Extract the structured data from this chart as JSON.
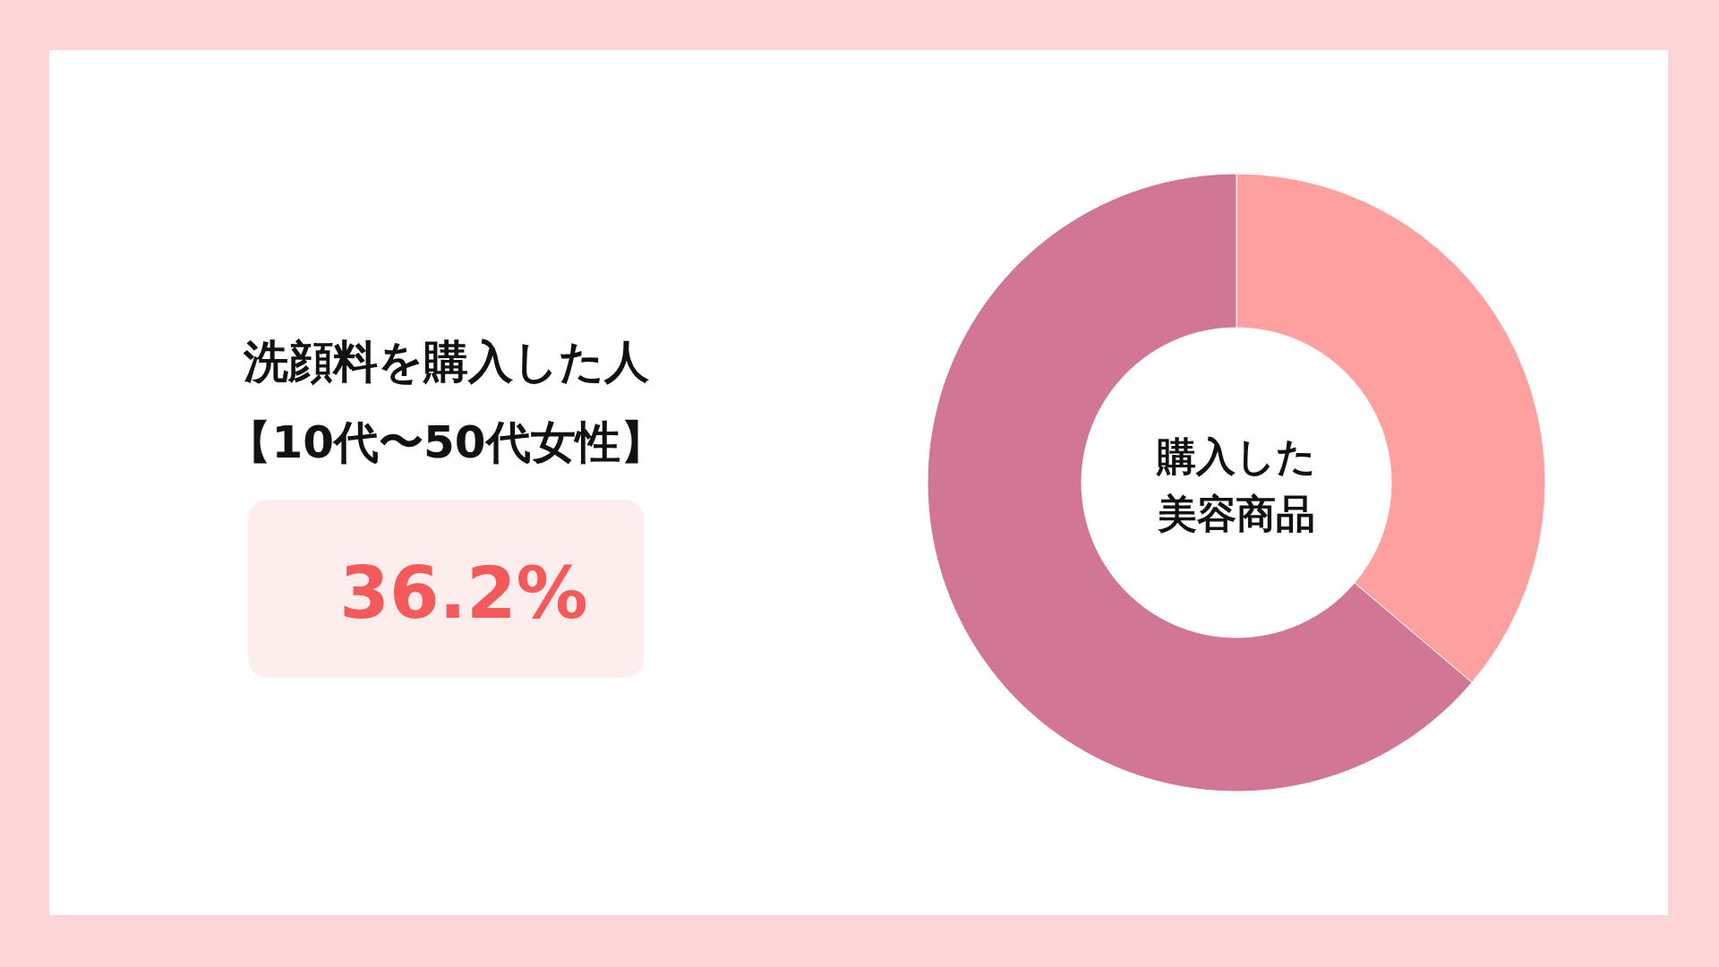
{
  "chart_data": {
    "type": "donut",
    "title": "洗顔料を購入した人",
    "subtitle": "【10代〜50代女性】",
    "categories": [
      null,
      null
    ],
    "values": [
      36.2,
      63.8
    ],
    "colors": [
      "#ffa0a0",
      "#d27696"
    ],
    "annotations": [
      "36.2%",
      "購入した美容商品"
    ]
  }
}
